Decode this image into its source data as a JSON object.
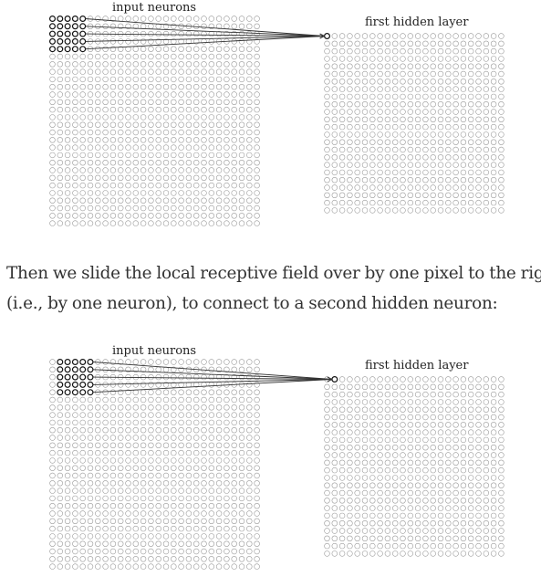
{
  "diagrams": [
    {
      "input_label": "input neurons",
      "hidden_label": "first hidden layer",
      "input_grid": {
        "rows": 28,
        "cols": 28
      },
      "hidden_grid": {
        "rows": 24,
        "cols": 24
      },
      "receptive_field": {
        "rows": 5,
        "cols": 5,
        "col_offset": 0,
        "row_offset": 0
      },
      "connected_hidden_neuron": {
        "row": 0,
        "col": 0
      }
    },
    {
      "input_label": "input neurons",
      "hidden_label": "first hidden layer",
      "input_grid": {
        "rows": 28,
        "cols": 28
      },
      "hidden_grid": {
        "rows": 24,
        "cols": 24
      },
      "receptive_field": {
        "rows": 5,
        "cols": 5,
        "col_offset": 1,
        "row_offset": 0
      },
      "connected_hidden_neuron": {
        "row": 0,
        "col": 1
      }
    }
  ],
  "paragraph": {
    "line1": "Then we slide the local receptive field over by one pixel to the right",
    "line2": "(i.e., by one neuron), to connect to a second hidden neuron:"
  },
  "colors": {
    "grid_stroke": "#9a9a9a",
    "active_stroke": "#111111",
    "line_stroke": "#333333"
  }
}
